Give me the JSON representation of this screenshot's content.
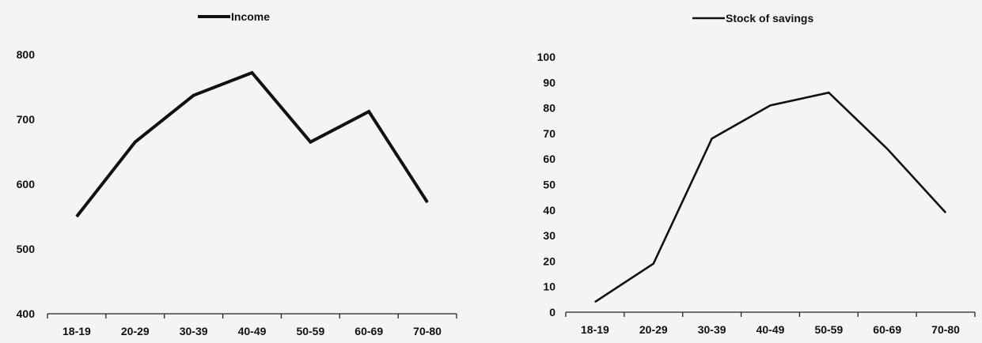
{
  "chart_data": [
    {
      "type": "line",
      "categories": [
        "18-19",
        "20-29",
        "30-39",
        "40-49",
        "50-59",
        "60-69",
        "70-80"
      ],
      "series": [
        {
          "name": "Income",
          "values": [
            550,
            665,
            737,
            772,
            665,
            712,
            572
          ],
          "color": "#111111"
        }
      ],
      "ylim": [
        400,
        800
      ],
      "yticks": [
        400,
        500,
        600,
        700,
        800
      ],
      "grid": false,
      "legend": "top-center"
    },
    {
      "type": "line",
      "categories": [
        "18-19",
        "20-29",
        "30-39",
        "40-49",
        "50-59",
        "60-69",
        "70-80"
      ],
      "series": [
        {
          "name": "Stock of savings",
          "values": [
            4,
            19,
            68,
            81,
            86,
            64,
            39
          ],
          "color": "#111111"
        }
      ],
      "ylim": [
        0,
        100
      ],
      "yticks": [
        0,
        10,
        20,
        30,
        40,
        50,
        60,
        70,
        80,
        90,
        100
      ],
      "grid": false,
      "legend": "top-center"
    }
  ]
}
